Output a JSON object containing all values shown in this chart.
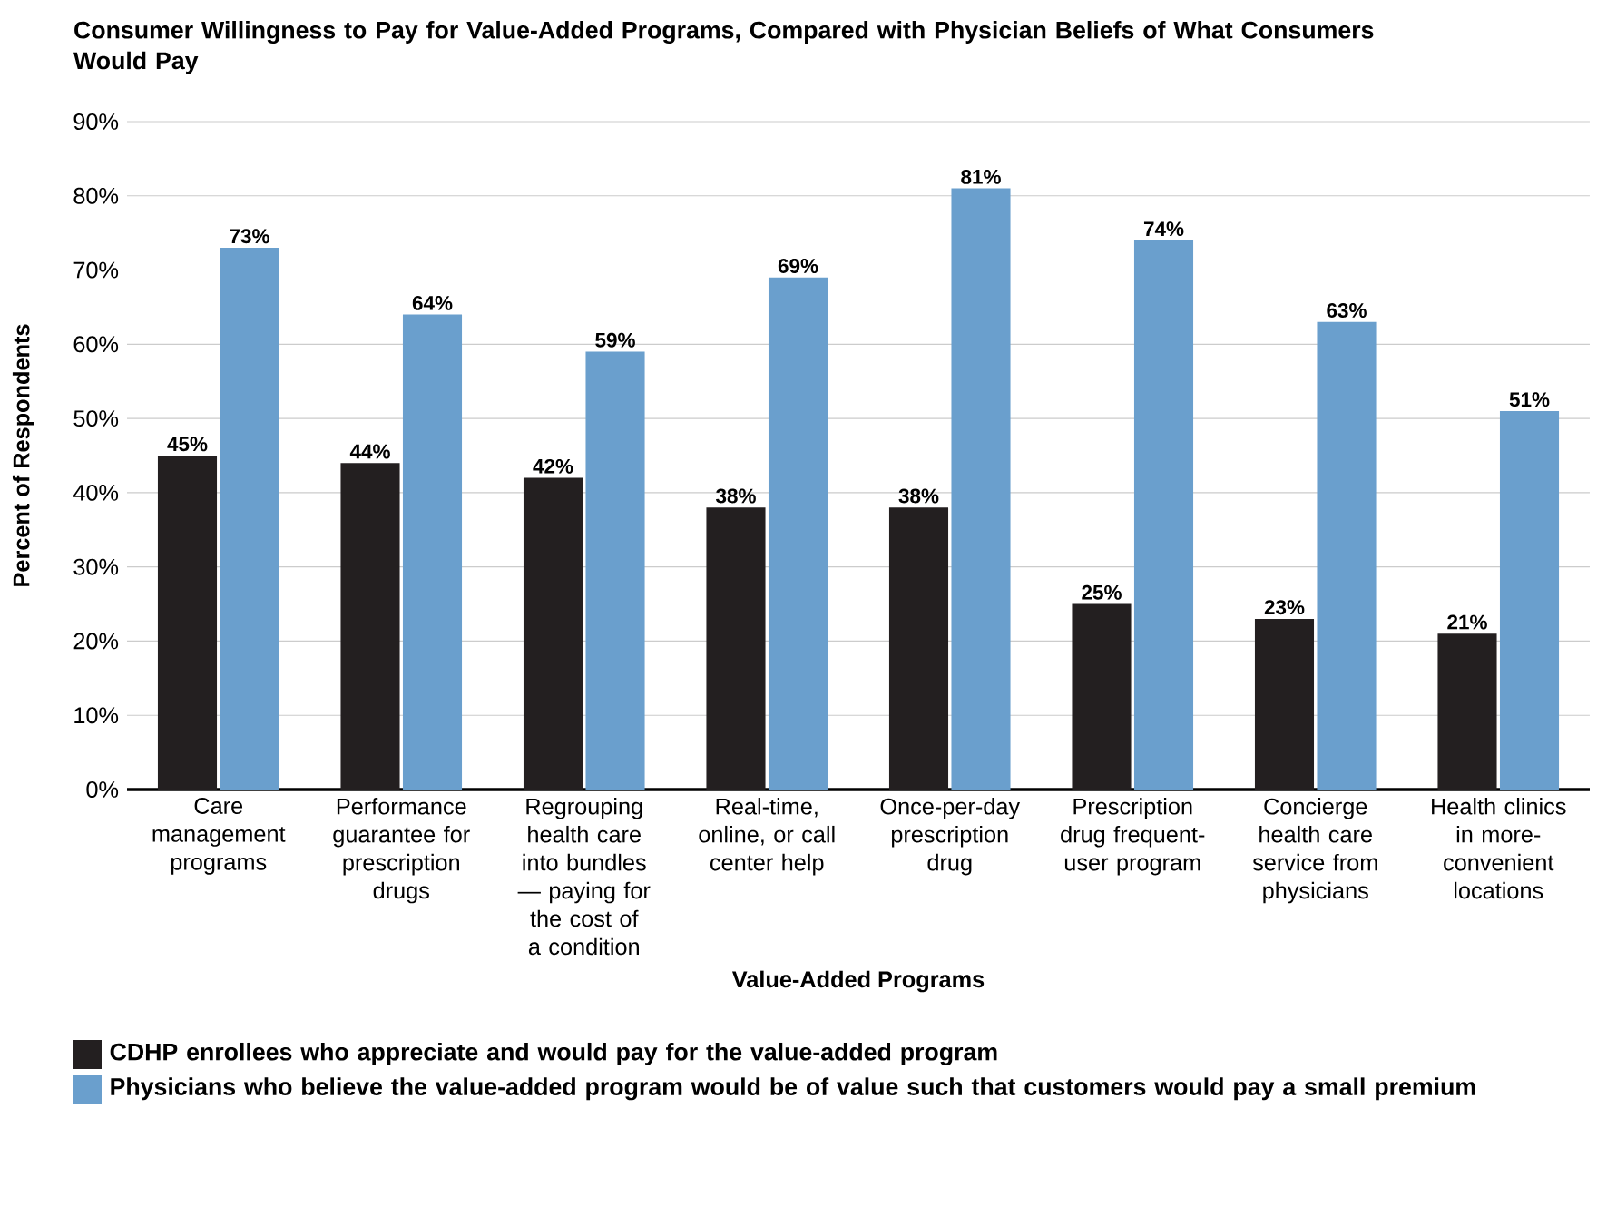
{
  "chart_data": {
    "type": "bar",
    "title": "Consumer Willingness to Pay for Value-Added Programs, Compared with Physician Beliefs of What Consumers Would Pay",
    "xlabel": "Value-Added Programs",
    "ylabel": "Percent of Respondents",
    "categories": [
      "Care management programs",
      "Performance guarantee for prescription drugs",
      "Regrouping health care into bundles — paying for the cost of a condition",
      "Real-time, online, or call center help",
      "Once-per-day prescription drug",
      "Prescription drug frequent-user program",
      "Concierge health care service from physicians",
      "Health clinics in more-convenient locations"
    ],
    "series": [
      {
        "name": "CDHP enrollees who appreciate and would pay for the value-added program",
        "color": "#231f20",
        "values": [
          45,
          44,
          42,
          38,
          38,
          25,
          23,
          21
        ],
        "value_labels": [
          "45%",
          "44%",
          "42%",
          "38%",
          "38%",
          "25%",
          "23%",
          "21%"
        ]
      },
      {
        "name": "Physicians who believe the value-added program would be of value such that customers would pay a small premium",
        "color": "#6a9fcd",
        "values": [
          73,
          64,
          59,
          69,
          81,
          74,
          63,
          51
        ],
        "value_labels": [
          "73%",
          "64%",
          "59%",
          "69%",
          "81%",
          "74%",
          "63%",
          "51%"
        ]
      }
    ],
    "ylim": [
      0,
      90
    ],
    "yticks": [
      {
        "value": 0,
        "label": "0%"
      },
      {
        "value": 10,
        "label": "10%"
      },
      {
        "value": 20,
        "label": "20%"
      },
      {
        "value": 30,
        "label": "30%"
      },
      {
        "value": 40,
        "label": "40%"
      },
      {
        "value": 50,
        "label": "50%"
      },
      {
        "value": 60,
        "label": "60%"
      },
      {
        "value": 70,
        "label": "70%"
      },
      {
        "value": 80,
        "label": "80%"
      },
      {
        "value": 90,
        "label": "90%"
      }
    ],
    "grid": "y",
    "legend": "bottom"
  }
}
